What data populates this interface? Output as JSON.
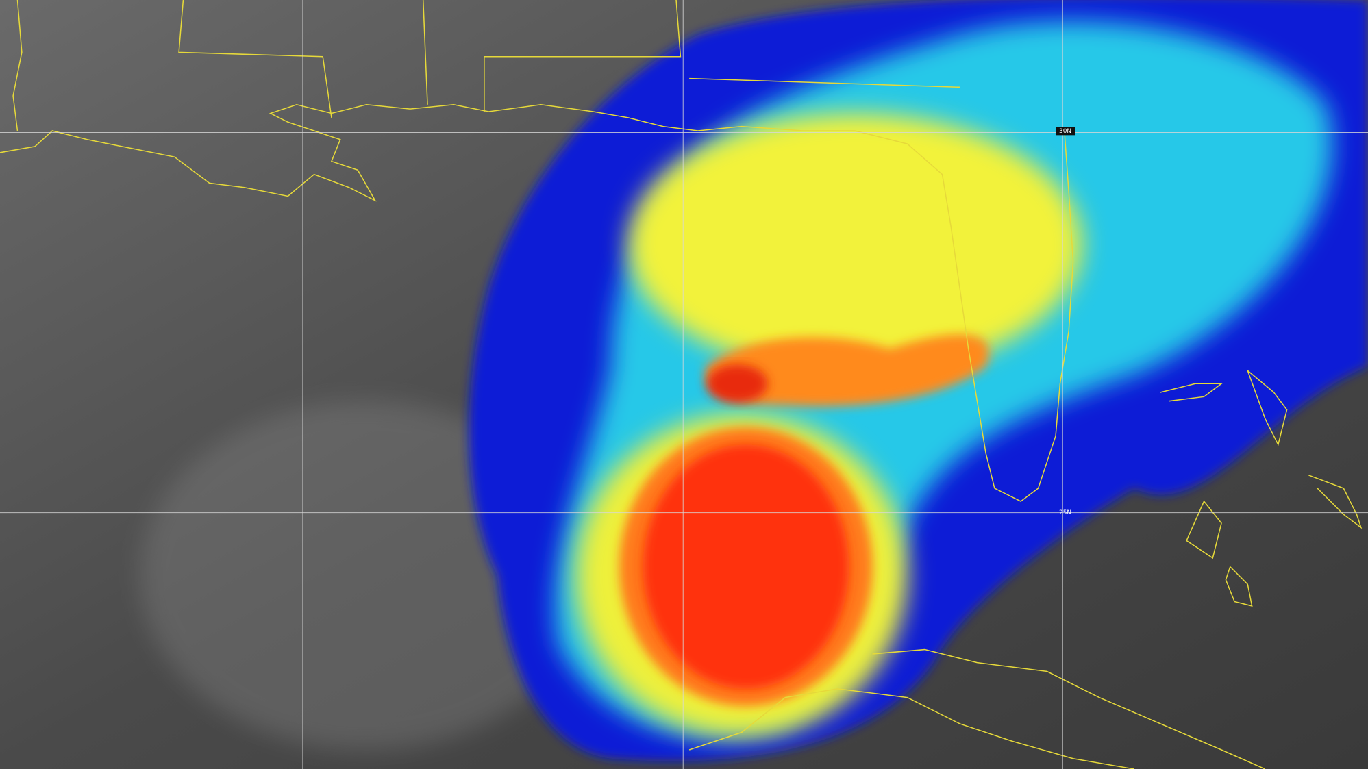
{
  "latitude_labels": [
    "30N",
    "25N"
  ]
}
